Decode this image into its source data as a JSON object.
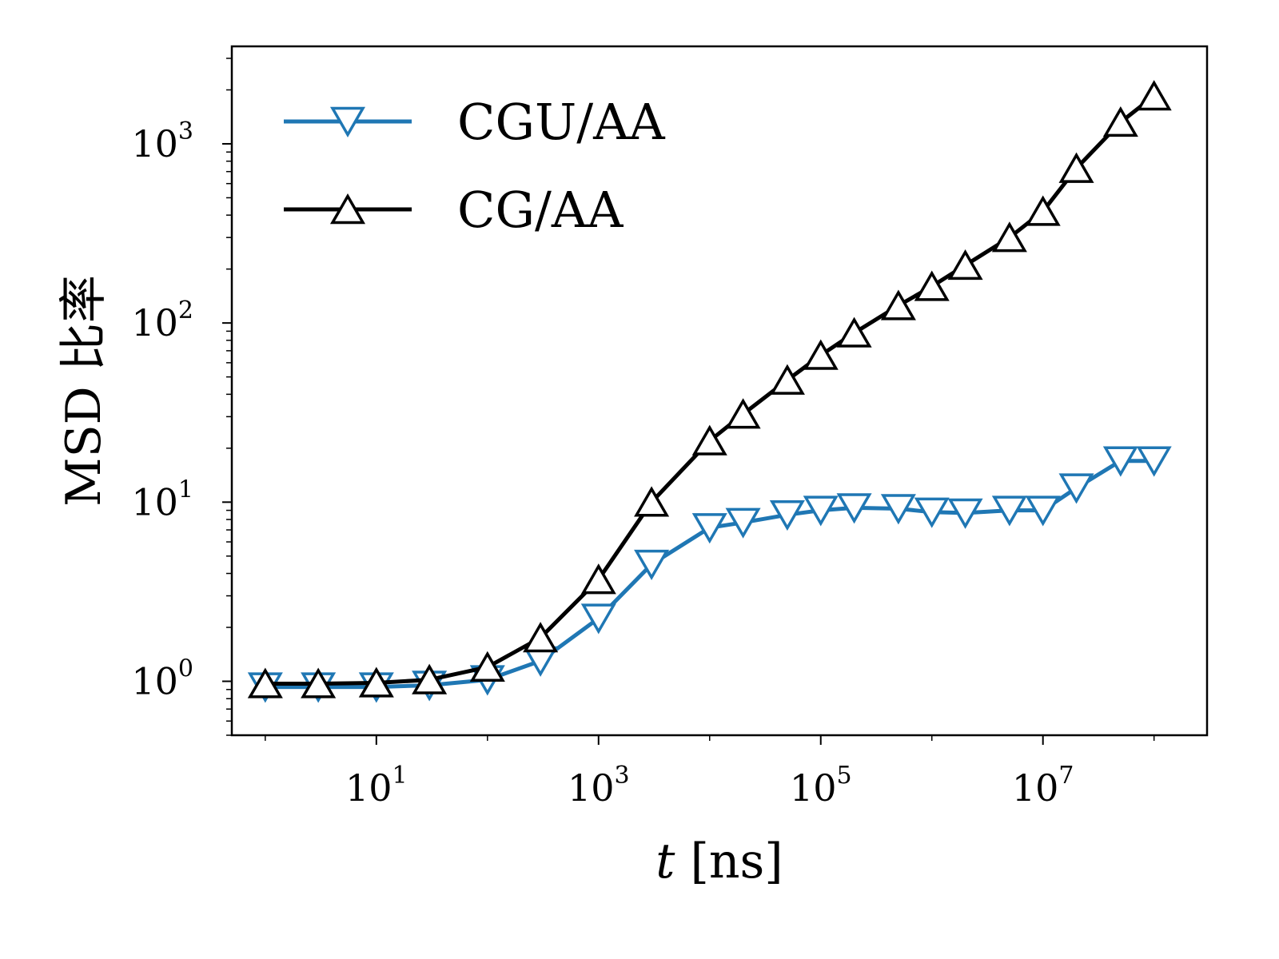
{
  "chart_data": {
    "type": "line",
    "title": "",
    "xlabel_var": "t",
    "xlabel_unit": " [ns]",
    "ylabel": "MSD 比率",
    "xscale": "log",
    "yscale": "log",
    "xlim": [
      0.5,
      300000000
    ],
    "ylim": [
      0.5,
      3500
    ],
    "x_ticks": [
      {
        "base": "10",
        "exp": "1",
        "value": 10
      },
      {
        "base": "10",
        "exp": "3",
        "value": 1000
      },
      {
        "base": "10",
        "exp": "5",
        "value": 100000
      },
      {
        "base": "10",
        "exp": "7",
        "value": 10000000
      }
    ],
    "y_ticks": [
      {
        "base": "10",
        "exp": "0",
        "value": 1
      },
      {
        "base": "10",
        "exp": "1",
        "value": 10
      },
      {
        "base": "10",
        "exp": "2",
        "value": 100
      },
      {
        "base": "10",
        "exp": "3",
        "value": 1000
      }
    ],
    "grid": false,
    "legend_position": "top-left",
    "series": [
      {
        "name": "CGU/AA",
        "color": "#1f77b4",
        "marker": "triangle-down",
        "x": [
          1,
          3,
          10,
          30,
          100,
          300,
          1000,
          3000,
          10000,
          20000,
          50000,
          100000,
          200000,
          500000,
          1000000,
          2000000,
          5000000,
          10000000,
          20000000,
          50000000,
          100000000
        ],
        "y": [
          0.93,
          0.93,
          0.93,
          0.95,
          1.02,
          1.3,
          2.25,
          4.5,
          7.2,
          7.7,
          8.5,
          9.0,
          9.3,
          9.2,
          8.8,
          8.7,
          9.0,
          9.0,
          12.0,
          17.0,
          17.0
        ]
      },
      {
        "name": "CG/AA",
        "color": "#000000",
        "marker": "triangle-up",
        "x": [
          1,
          3,
          10,
          30,
          100,
          300,
          1000,
          3000,
          10000,
          20000,
          50000,
          100000,
          200000,
          500000,
          1000000,
          2000000,
          5000000,
          10000000,
          20000000,
          50000000,
          100000000
        ],
        "y": [
          0.97,
          0.97,
          0.98,
          1.02,
          1.2,
          1.75,
          3.7,
          10.0,
          22.0,
          31.0,
          48.0,
          66.0,
          88.0,
          125.0,
          160.0,
          210.0,
          300.0,
          420.0,
          730.0,
          1320.0,
          1850.0
        ]
      }
    ]
  }
}
